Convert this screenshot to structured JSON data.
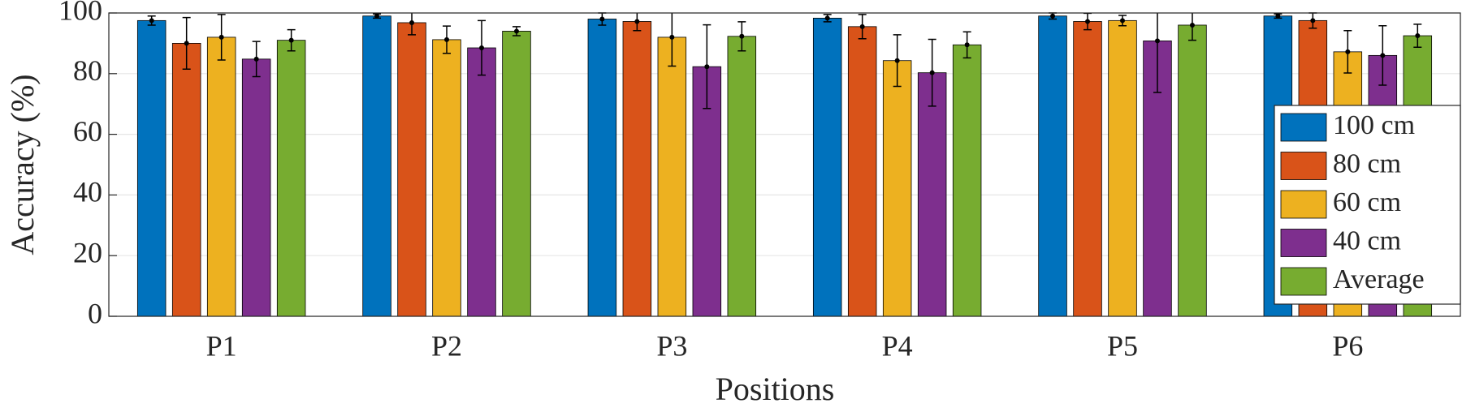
{
  "chart_data": {
    "type": "bar",
    "x_label": "Positions",
    "y_label": "Accuracy (%)",
    "categories": [
      "P1",
      "P2",
      "P3",
      "P4",
      "P5",
      "P6"
    ],
    "series": [
      {
        "name": "100 cm",
        "color": "#0072bd",
        "values": [
          97.5,
          99,
          98,
          98.3,
          99,
          99
        ],
        "errors": [
          1.5,
          0.7,
          2,
          1.2,
          1,
          0.7
        ]
      },
      {
        "name": "80 cm",
        "color": "#d95319",
        "values": [
          90,
          96.8,
          97.2,
          95.5,
          97.2,
          97.5
        ],
        "errors": [
          8.5,
          4,
          3,
          4,
          2.7,
          2.5
        ]
      },
      {
        "name": "60 cm",
        "color": "#edb120",
        "values": [
          92,
          91.2,
          92,
          84.3,
          97.5,
          87.2
        ],
        "errors": [
          7.5,
          4.5,
          9.5,
          8.5,
          1.7,
          7
        ]
      },
      {
        "name": "40 cm",
        "color": "#7e2f8e",
        "values": [
          84.8,
          88.5,
          82.3,
          80.3,
          90.8,
          86
        ],
        "errors": [
          5.8,
          9,
          13.8,
          11,
          17,
          9.8
        ]
      },
      {
        "name": "Average",
        "color": "#77ac30",
        "values": [
          91,
          94,
          92.3,
          89.5,
          96,
          92.5
        ],
        "errors": [
          3.5,
          1.5,
          4.8,
          4.3,
          5,
          3.8
        ]
      }
    ],
    "ylim": [
      0,
      100
    ],
    "yticks": [
      0,
      20,
      40,
      60,
      80,
      100
    ],
    "grid": true,
    "legend": "lower right"
  }
}
